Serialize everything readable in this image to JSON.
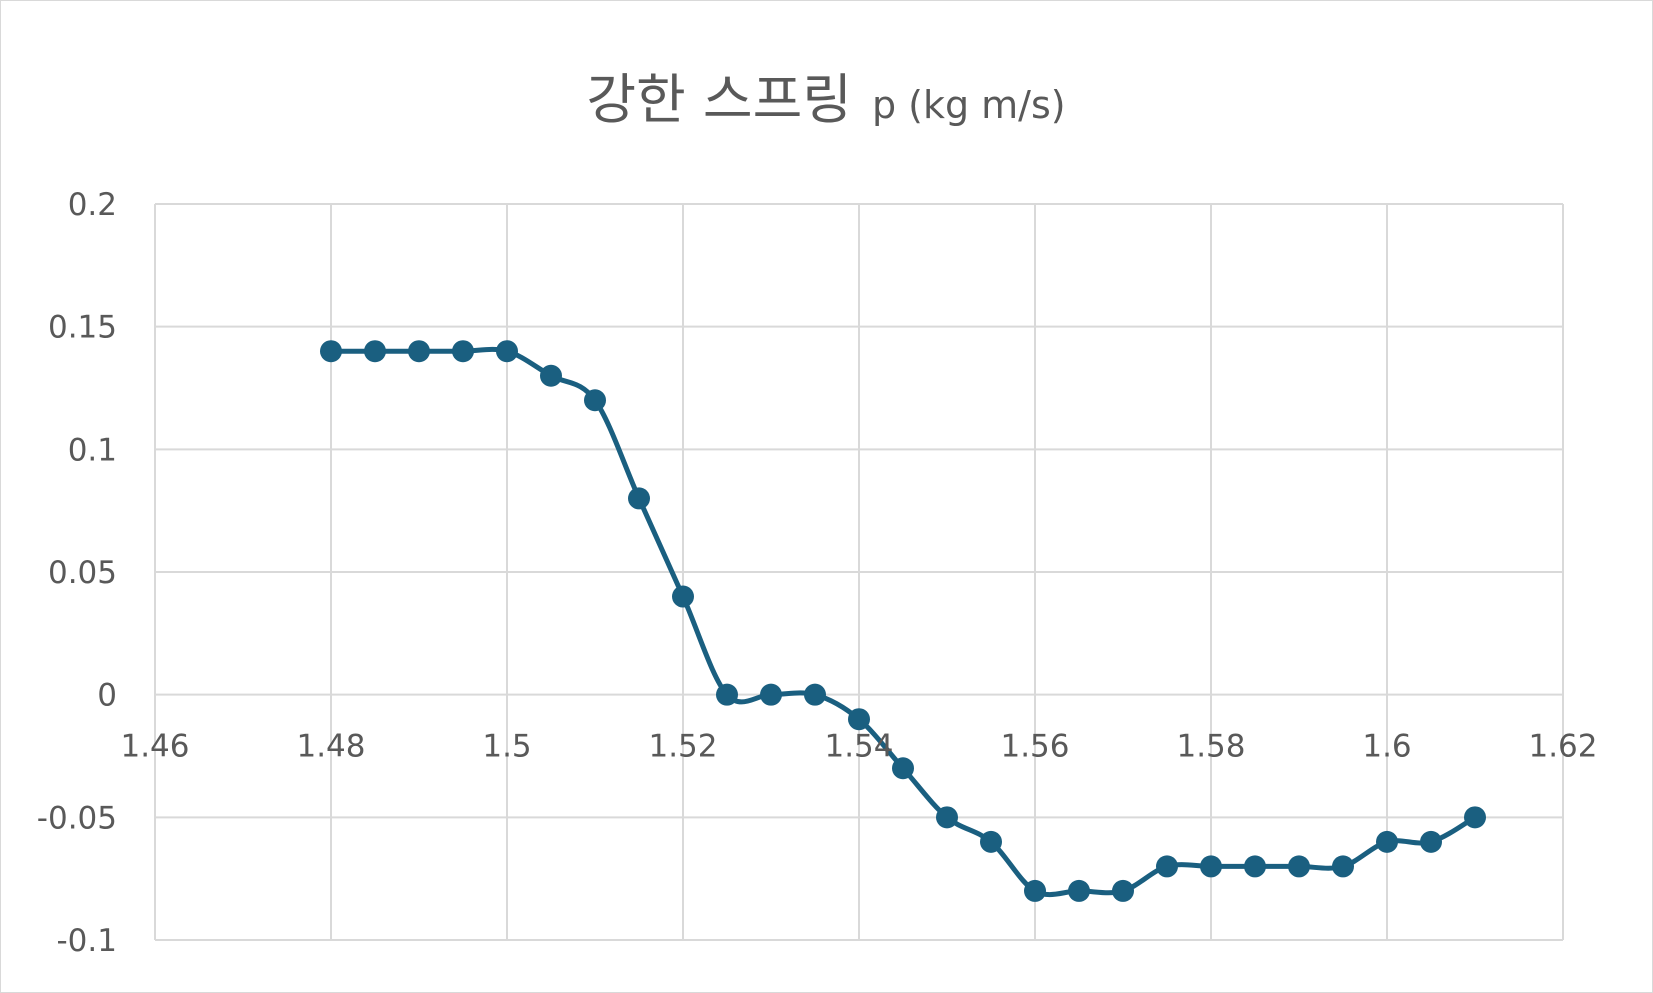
{
  "chart_data": {
    "type": "scatter",
    "title": "강한 스프링",
    "title_suffix": "p (kg m/s)",
    "xlabel": "",
    "ylabel": "",
    "xlim": [
      1.46,
      1.62
    ],
    "ylim": [
      -0.1,
      0.2
    ],
    "x_ticks": [
      1.46,
      1.48,
      1.5,
      1.52,
      1.54,
      1.56,
      1.58,
      1.6,
      1.62
    ],
    "x_tick_labels": [
      "1.46",
      "1.48",
      "1.5",
      "1.52",
      "1.54",
      "1.56",
      "1.58",
      "1.6",
      "1.62"
    ],
    "y_ticks": [
      0.2,
      0.15,
      0.1,
      0.05,
      0,
      -0.05,
      -0.1
    ],
    "y_tick_labels": [
      "0.2",
      "0.15",
      "0.1",
      "0.05",
      "0",
      "-0.05",
      "-0.1"
    ],
    "grid": true,
    "smooth_line": true,
    "markers": true,
    "series": [
      {
        "color": "#1a5f80",
        "x": [
          1.48,
          1.485,
          1.49,
          1.495,
          1.5,
          1.505,
          1.51,
          1.515,
          1.52,
          1.525,
          1.53,
          1.535,
          1.54,
          1.545,
          1.55,
          1.555,
          1.56,
          1.565,
          1.57,
          1.575,
          1.58,
          1.585,
          1.59,
          1.595,
          1.6,
          1.605,
          1.61
        ],
        "y": [
          0.14,
          0.14,
          0.14,
          0.14,
          0.14,
          0.13,
          0.12,
          0.08,
          0.04,
          0,
          0,
          0,
          -0.01,
          -0.03,
          -0.05,
          -0.06,
          -0.08,
          -0.08,
          -0.08,
          -0.07,
          -0.07,
          -0.07,
          -0.07,
          -0.07,
          -0.06,
          -0.06,
          -0.05
        ]
      }
    ]
  }
}
